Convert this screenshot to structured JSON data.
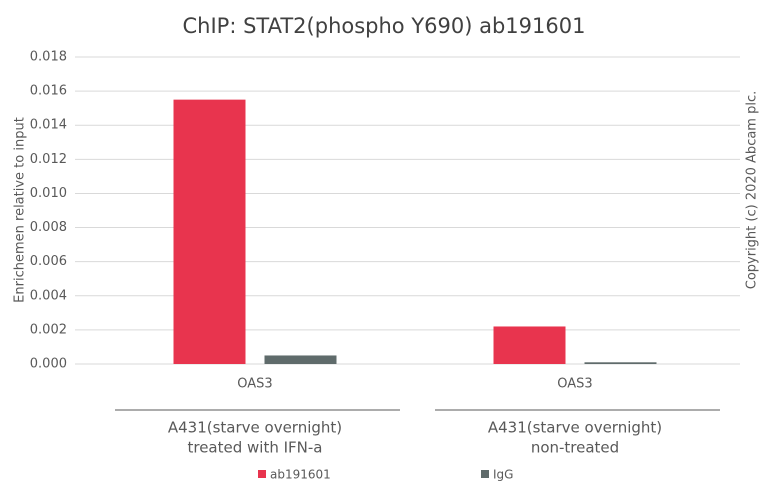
{
  "chart_data": {
    "type": "bar",
    "title": "ChIP: STAT2(phospho Y690) ab191601",
    "y_label": "Enrichemen relative to input",
    "side_note": "Copyright (c) 2020 Abcam plc.",
    "categories": [
      "OAS3",
      "OAS3"
    ],
    "group_labels": [
      [
        "A431(starve overnight)",
        "treated with IFN-a"
      ],
      [
        "A431(starve overnight)",
        "non-treated"
      ]
    ],
    "series": [
      {
        "name": "ab191601",
        "color": "#e8344e",
        "values": [
          0.0155,
          0.0022
        ]
      },
      {
        "name": "IgG",
        "color": "#5f6b6b",
        "values": [
          0.0005,
          0.0001
        ]
      }
    ],
    "ylim": [
      0,
      0.018
    ],
    "yticks": [
      {
        "value": 0,
        "label": "0.000"
      },
      {
        "value": 0.002,
        "label": "0.002"
      },
      {
        "value": 0.004,
        "label": "0.004"
      },
      {
        "value": 0.006,
        "label": "0.006"
      },
      {
        "value": 0.008,
        "label": "0.008"
      },
      {
        "value": 0.01,
        "label": "0.010"
      },
      {
        "value": 0.012,
        "label": "0.012"
      },
      {
        "value": 0.014,
        "label": "0.014"
      },
      {
        "value": 0.016,
        "label": "0.016"
      },
      {
        "value": 0.018,
        "label": "0.018"
      }
    ],
    "grid": true
  }
}
